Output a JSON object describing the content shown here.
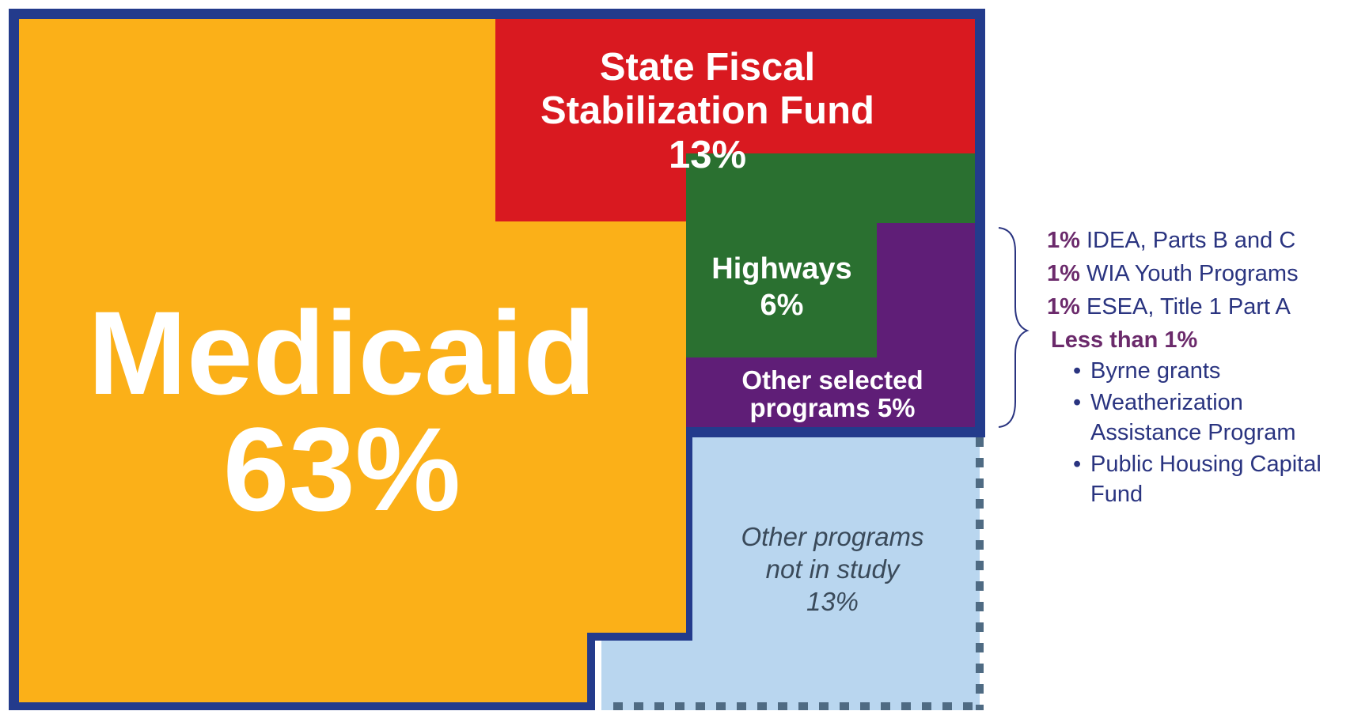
{
  "chart_data": {
    "type": "treemap",
    "title": "",
    "categories": [
      "Medicaid",
      "State Fiscal Stabilization Fund",
      "Highways",
      "Other selected programs",
      "Other programs not in study"
    ],
    "values": [
      63,
      13,
      6,
      5,
      13
    ],
    "unit": "%",
    "colors": [
      "#fbb018",
      "#d91920",
      "#2a7030",
      "#5f1e77",
      "#b9d6ef"
    ],
    "border_color": "#233b8c",
    "tile_labels": {
      "medicaid": {
        "name": "Medicaid",
        "value": "63%"
      },
      "sfsf": {
        "line1": "State Fiscal",
        "line2": "Stabilization Fund",
        "value": "13%"
      },
      "highways": {
        "name": "Highways",
        "value": "6%"
      },
      "other_selected": {
        "line1": "Other selected",
        "line2": "programs 5%"
      },
      "other_not_in_study": {
        "line1": "Other programs",
        "line2": "not in study",
        "value": "13%"
      }
    },
    "breakdown": {
      "items": [
        {
          "pct": "1%",
          "label": "IDEA, Parts B and C"
        },
        {
          "pct": "1%",
          "label": "WIA Youth Programs"
        },
        {
          "pct": "1%",
          "label": "ESEA, Title 1 Part A"
        }
      ],
      "less_than_label": "Less than 1%",
      "bullets": [
        {
          "lines": [
            "Byrne grants"
          ]
        },
        {
          "lines": [
            "Weatherization",
            "Assistance Program"
          ]
        },
        {
          "lines": [
            "Public Housing Capital",
            "Fund"
          ]
        }
      ]
    }
  }
}
